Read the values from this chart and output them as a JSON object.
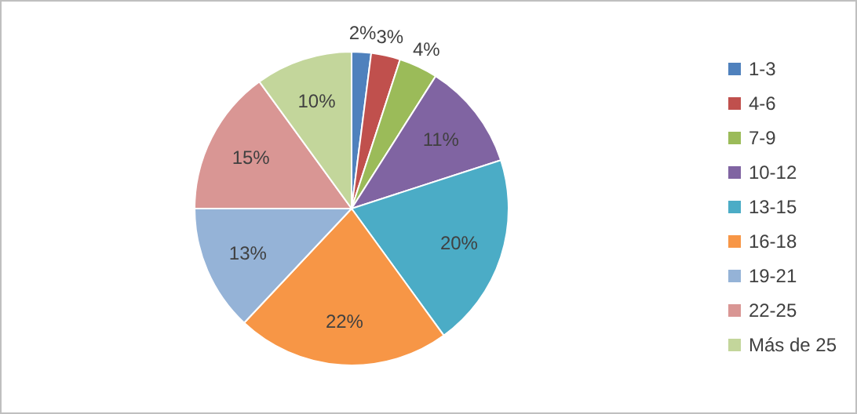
{
  "chart_data": {
    "type": "pie",
    "categories": [
      "1-3",
      "4-6",
      "7-9",
      "10-12",
      "13-15",
      "16-18",
      "19-21",
      "22-25",
      "Más de 25"
    ],
    "values": [
      2,
      3,
      4,
      11,
      20,
      22,
      13,
      15,
      10
    ],
    "colors": [
      "#4f81bd",
      "#c0504d",
      "#9bbb59",
      "#8064a2",
      "#4bacc6",
      "#f79646",
      "#95b3d7",
      "#d99694",
      "#c3d69b"
    ],
    "value_labels": [
      "2%",
      "3%",
      "4%",
      "11%",
      "20%",
      "22%",
      "13%",
      "15%",
      "10%"
    ],
    "legend": "right"
  }
}
